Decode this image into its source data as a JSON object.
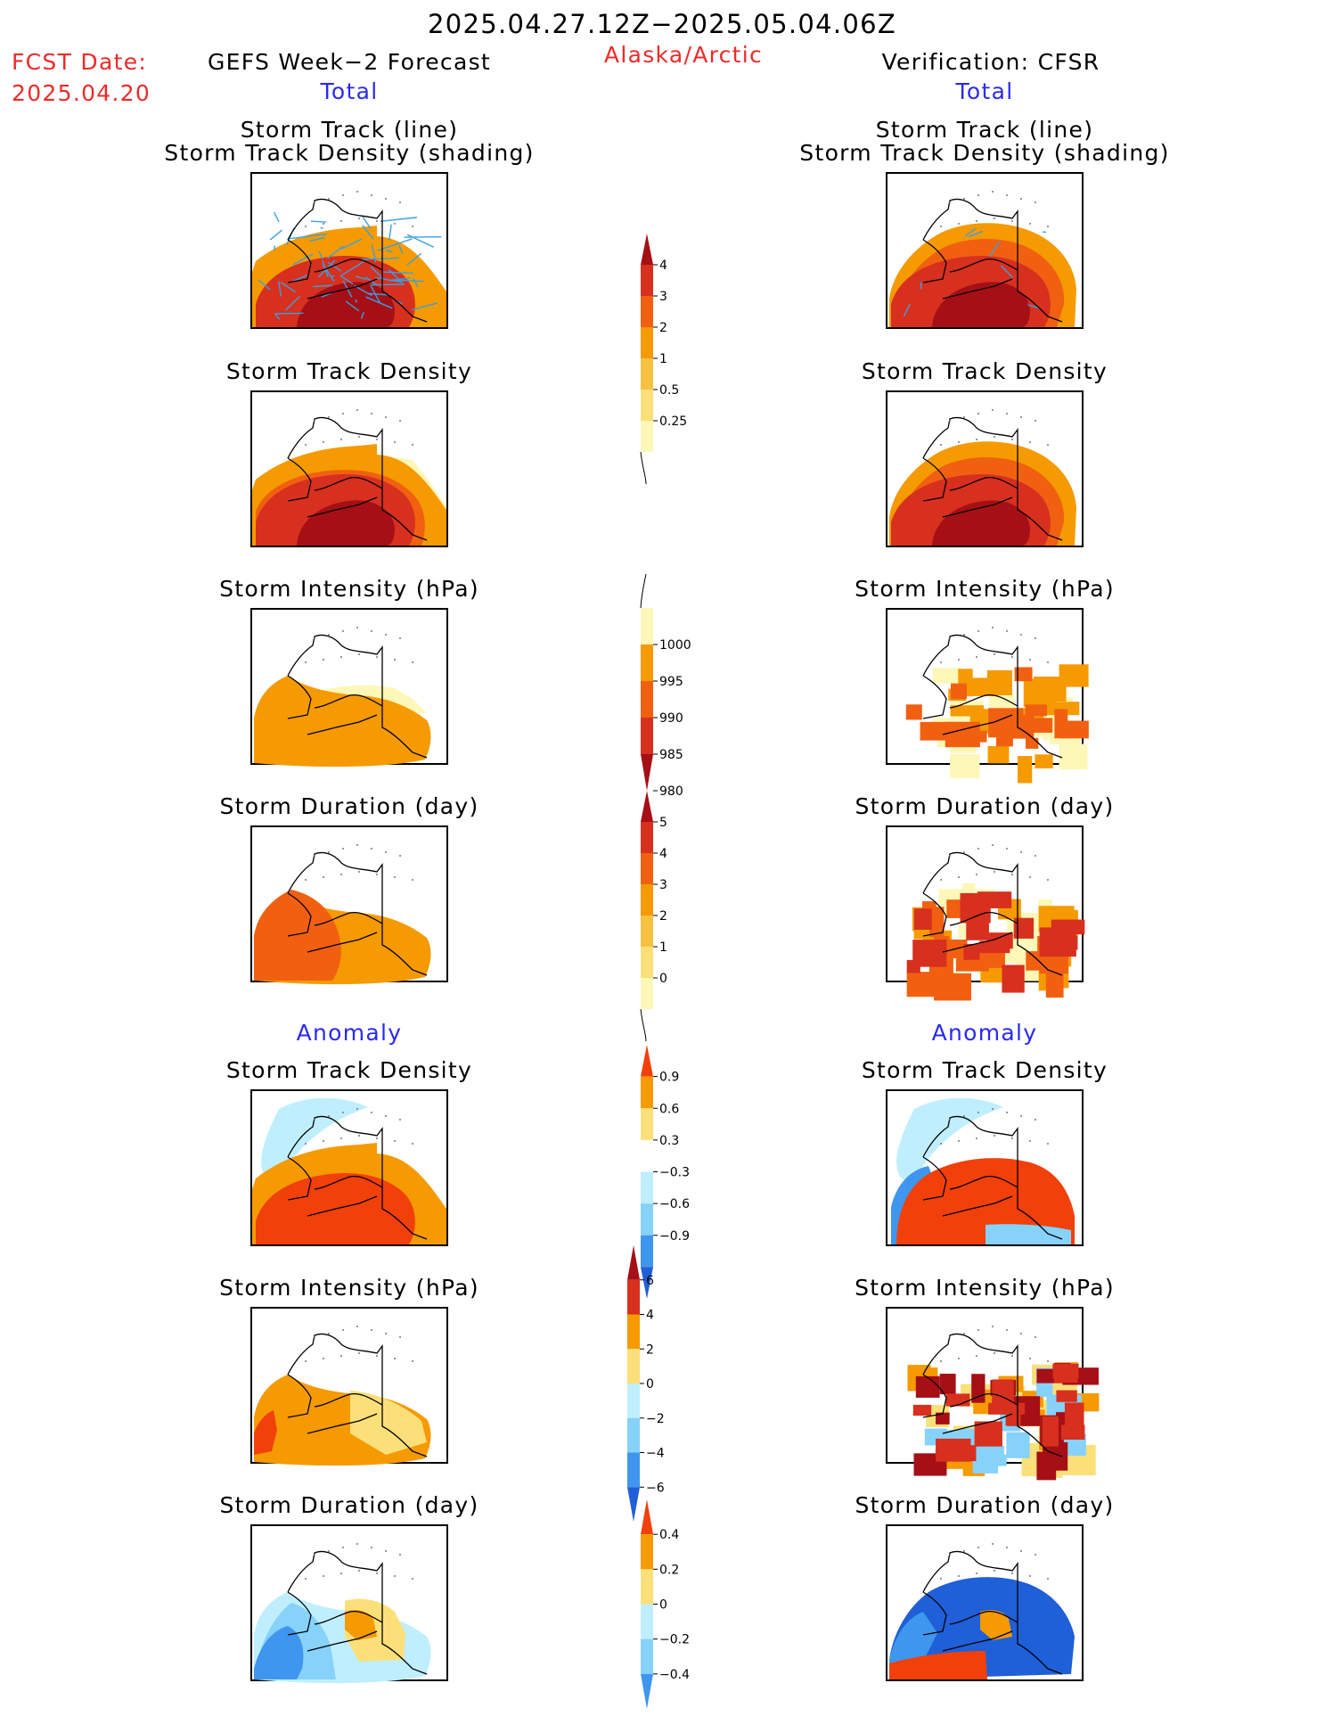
{
  "header": {
    "period": "2025.04.27.12Z−2025.05.04.06Z",
    "fcst_label": "FCST Date:",
    "fcst_date": "2025.04.20",
    "left_title": "GEFS Week−2 Forecast",
    "region": "Alaska/Arctic",
    "right_title": "Verification: CFSR",
    "total_left": "Total",
    "total_right": "Total",
    "anomaly_left": "Anomaly",
    "anomaly_right": "Anomaly"
  },
  "panels": {
    "track_line": "Storm Track (line)",
    "track_shading": "Storm Track Density (shading)",
    "density": "Storm Track Density",
    "intensity": "Storm Intensity (hPa)",
    "duration": "Storm Duration (day)"
  },
  "colors": {
    "title_red": "#ee2a2a",
    "label_blue": "#2a2aee",
    "darkred": "#a50f15",
    "red": "#d7301f",
    "redorange": "#f2400a",
    "orange": "#f06010",
    "amber": "#f59a00",
    "lightamber": "#f8c240",
    "yellow": "#fbe07a",
    "paleyellow": "#fdf7b8",
    "paleblue": "#bfefff",
    "lightblue": "#86d2fa",
    "midblue": "#3f96ee",
    "deepblue": "#1f5fd8",
    "track": "#3aa0e0"
  },
  "colorbars": [
    {
      "id": "density_total",
      "labels": [
        "4",
        "3",
        "2",
        "1",
        "0.5",
        "0.25"
      ]
    },
    {
      "id": "intensity_total",
      "labels": [
        "1000",
        "995",
        "990",
        "985",
        "980"
      ]
    },
    {
      "id": "duration_total",
      "labels": [
        "5",
        "4",
        "3",
        "2",
        "1",
        "0"
      ]
    },
    {
      "id": "density_anom",
      "labels": [
        "0.9",
        "0.6",
        "0.3",
        "−0.3",
        "−0.6",
        "−0.9"
      ]
    },
    {
      "id": "intensity_anom",
      "labels": [
        "6",
        "4",
        "2",
        "0",
        "−2",
        "−4",
        "−6"
      ]
    },
    {
      "id": "duration_anom",
      "labels": [
        "0.4",
        "0.2",
        "0",
        "−0.2",
        "−0.4"
      ]
    }
  ]
}
